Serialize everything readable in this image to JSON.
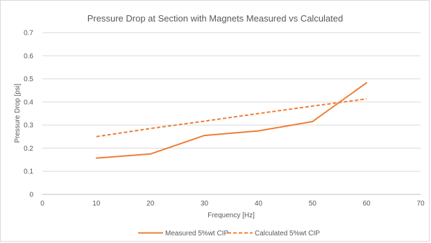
{
  "chart_data": {
    "type": "line",
    "title": "Pressure Drop at Section with Magnets Measured vs Calculated",
    "xlabel": "Frequency [Hz]",
    "ylabel": "Pressure Drop [psi]",
    "xlim": [
      0,
      70
    ],
    "ylim": [
      0,
      0.7
    ],
    "xticks": [
      0,
      10,
      20,
      30,
      40,
      50,
      60,
      70
    ],
    "yticks": [
      0,
      0.1,
      0.2,
      0.3,
      0.4,
      0.5,
      0.6,
      0.7
    ],
    "ytick_labels": [
      "0",
      "0.1",
      "0.2",
      "0.3",
      "0.4",
      "0.5",
      "0.6",
      "0.7"
    ],
    "grid": true,
    "legend_position": "bottom",
    "series": [
      {
        "name": "Measured 5%wt CIP",
        "style": "solid",
        "color": "#ED7D31",
        "x": [
          10,
          20,
          30,
          40,
          50,
          60
        ],
        "y": [
          0.157,
          0.175,
          0.255,
          0.275,
          0.315,
          0.483
        ]
      },
      {
        "name": "Calculated 5%wt CIP",
        "style": "dashed",
        "color": "#ED7D31",
        "x": [
          10,
          20,
          30,
          40,
          50,
          60
        ],
        "y": [
          0.25,
          0.285,
          0.317,
          0.35,
          0.382,
          0.413
        ]
      }
    ]
  }
}
